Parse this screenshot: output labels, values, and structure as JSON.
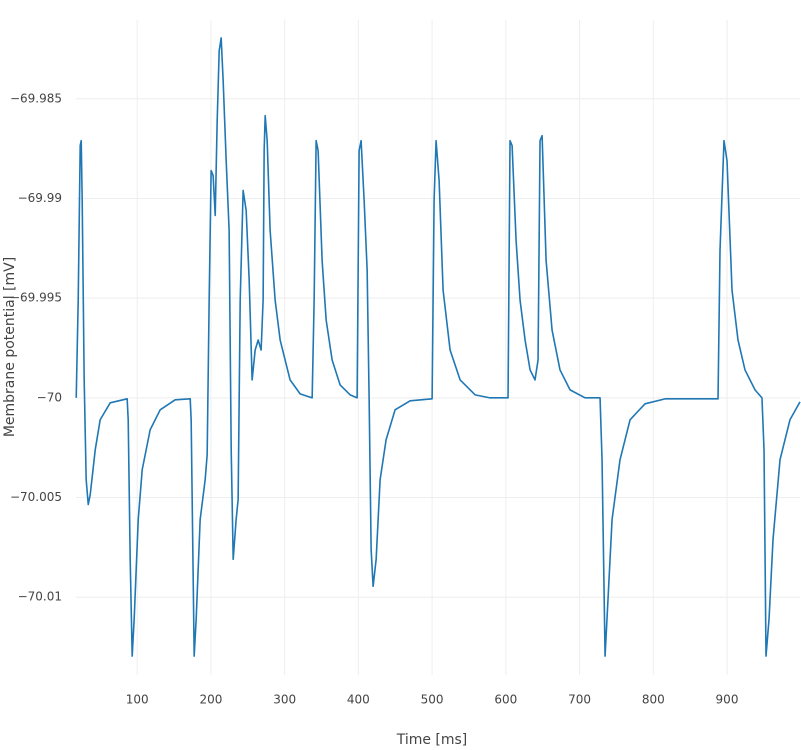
{
  "chart_data": {
    "type": "line",
    "x_label": "Time [ms]",
    "y_label": "Membrane potential [mV]",
    "xlim": [
      17,
      999
    ],
    "ylim": [
      -70.0139,
      -69.98105
    ],
    "xticks": [
      100,
      200,
      300,
      400,
      500,
      600,
      700,
      800,
      900
    ],
    "yticks": [
      {
        "value": -70.01,
        "label": "−70.01"
      },
      {
        "value": -70.005,
        "label": "−70.005"
      },
      {
        "value": -70,
        "label": "−70"
      },
      {
        "value": -69.995,
        "label": "−69.995"
      },
      {
        "value": -69.99,
        "label": "−69.99"
      },
      {
        "value": -69.985,
        "label": "−69.985"
      }
    ],
    "grid": true,
    "series": [
      {
        "color": "#1f77b4",
        "x": [
          17.3,
          20.0,
          22.7,
          24.1,
          25.4,
          28.1,
          30.8,
          33.6,
          36.3,
          43.1,
          49.8,
          63.4,
          86.4,
          87.8,
          90.5,
          93.2,
          95.9,
          101.4,
          106.8,
          117.6,
          131.2,
          151.5,
          171.9,
          173.2,
          177.3,
          180.0,
          185.4,
          192.2,
          194.9,
          197.6,
          200.3,
          203.0,
          205.8,
          208.5,
          211.2,
          213.9,
          216.6,
          220.7,
          224.7,
          227.5,
          230.2,
          234.2,
          236.9,
          239.7,
          243.7,
          247.8,
          251.9,
          255.9,
          260.0,
          264.1,
          268.1,
          270.8,
          272.2,
          273.6,
          276.3,
          280.3,
          287.1,
          293.9,
          307.4,
          321.0,
          337.3,
          340.0,
          342.7,
          345.4,
          350.8,
          356.3,
          364.4,
          375.2,
          388.8,
          398.3,
          401.0,
          403.7,
          407.8,
          411.9,
          414.6,
          417.3,
          420.0,
          424.1,
          429.5,
          437.6,
          449.8,
          470.2,
          500.0,
          502.7,
          505.4,
          509.5,
          514.9,
          524.4,
          538.0,
          558.3,
          578.6,
          603.0,
          605.7,
          608.5,
          613.9,
          619.3,
          626.1,
          632.9,
          639.6,
          643.7,
          646.4,
          649.2,
          654.6,
          662.7,
          673.5,
          687.1,
          707.4,
          727.8,
          730.5,
          734.6,
          738.6,
          744.1,
          754.9,
          768.5,
          788.8,
          815.9,
          887.8,
          890.5,
          895.9,
          900.0,
          906.8,
          914.9,
          924.4,
          938.0,
          947.4,
          950.2,
          952.9,
          957.0,
          962.4,
          971.9,
          985.4,
          999.0
        ],
        "values": [
          -70,
          -69.9951,
          -69.98735,
          -69.9871,
          -69.9901,
          -69.9991,
          -70.0041,
          -70.00535,
          -70.00485,
          -70.0026,
          -70.0011,
          -70.00025,
          -70.00005,
          -70.0011,
          -70.0081,
          -70.01295,
          -70.0111,
          -70.0061,
          -70.0036,
          -70.0016,
          -70.0006,
          -70.0001,
          -70.00005,
          -70.0011,
          -70.01295,
          -70.0111,
          -70.0061,
          -70.0041,
          -70.00285,
          -69.9951,
          -69.9886,
          -69.98885,
          -69.99085,
          -69.9861,
          -69.9826,
          -69.98195,
          -69.9841,
          -69.9881,
          -69.9916,
          -70.0026,
          -70.0081,
          -70.0061,
          -70.0051,
          -69.9951,
          -69.9896,
          -69.9906,
          -69.9941,
          -69.9991,
          -69.9976,
          -69.9971,
          -69.9976,
          -69.9951,
          -69.9876,
          -69.98585,
          -69.9871,
          -69.9916,
          -69.9951,
          -69.9971,
          -69.9991,
          -69.9998,
          -70,
          -69.9951,
          -69.9871,
          -69.9876,
          -69.9931,
          -69.9961,
          -69.9981,
          -69.99935,
          -69.99985,
          -70,
          -69.9876,
          -69.9871,
          -69.9901,
          -69.9936,
          -70.0001,
          -70.0076,
          -70.00945,
          -70.0081,
          -70.0041,
          -70.0021,
          -70.0006,
          -70.00015,
          -70.00005,
          -69.9901,
          -69.9871,
          -69.9891,
          -69.9946,
          -69.9976,
          -69.9991,
          -69.99985,
          -70,
          -70,
          -69.9871,
          -69.98735,
          -69.9921,
          -69.9951,
          -69.9971,
          -69.9986,
          -69.9991,
          -69.9981,
          -69.9871,
          -69.98685,
          -69.9931,
          -69.9966,
          -69.9986,
          -69.9996,
          -70,
          -70,
          -70.0031,
          -70.01295,
          -70.0101,
          -70.0061,
          -70.0031,
          -70.0011,
          -70.0003,
          -70.00005,
          -70.00005,
          -69.9926,
          -69.9871,
          -69.9881,
          -69.9946,
          -69.9971,
          -69.9986,
          -69.9996,
          -70,
          -70.0026,
          -70.01295,
          -70.0111,
          -70.0071,
          -70.0031,
          -70.0011,
          -70.0002
        ]
      }
    ]
  }
}
